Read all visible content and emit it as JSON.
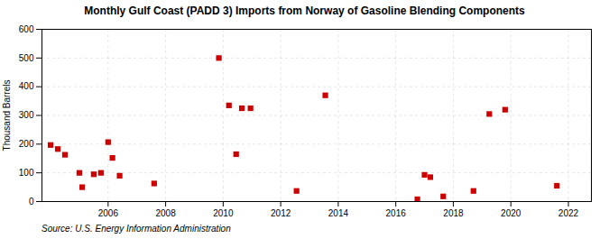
{
  "chart_data": {
    "type": "scatter",
    "title": "Monthly Gulf Coast (PADD 3) Imports from Norway of Gasoline Blending Components",
    "ylabel": "Thousand Barrels",
    "source": "Source: U.S. Energy Information Administration",
    "x": [
      2004.0,
      2004.25,
      2004.5,
      2005.0,
      2005.1,
      2005.5,
      2005.75,
      2006.0,
      2006.15,
      2006.4,
      2007.6,
      2009.85,
      2010.2,
      2010.45,
      2010.65,
      2010.95,
      2012.55,
      2013.55,
      2016.75,
      2017.0,
      2017.2,
      2017.65,
      2018.7,
      2019.25,
      2019.8,
      2021.6
    ],
    "values": [
      197,
      183,
      163,
      100,
      50,
      95,
      100,
      207,
      152,
      90,
      63,
      500,
      335,
      165,
      325,
      325,
      37,
      370,
      8,
      93,
      85,
      18,
      37,
      305,
      320,
      55
    ],
    "color": "#cc0000",
    "marker": "square",
    "xlim": [
      2003.7,
      2022.8
    ],
    "xticks": [
      2006,
      2008,
      2010,
      2012,
      2014,
      2016,
      2018,
      2020,
      2022
    ],
    "ylim": [
      0,
      600
    ],
    "yticks": [
      0,
      100,
      200,
      300,
      400,
      500,
      600
    ],
    "grid": true
  }
}
